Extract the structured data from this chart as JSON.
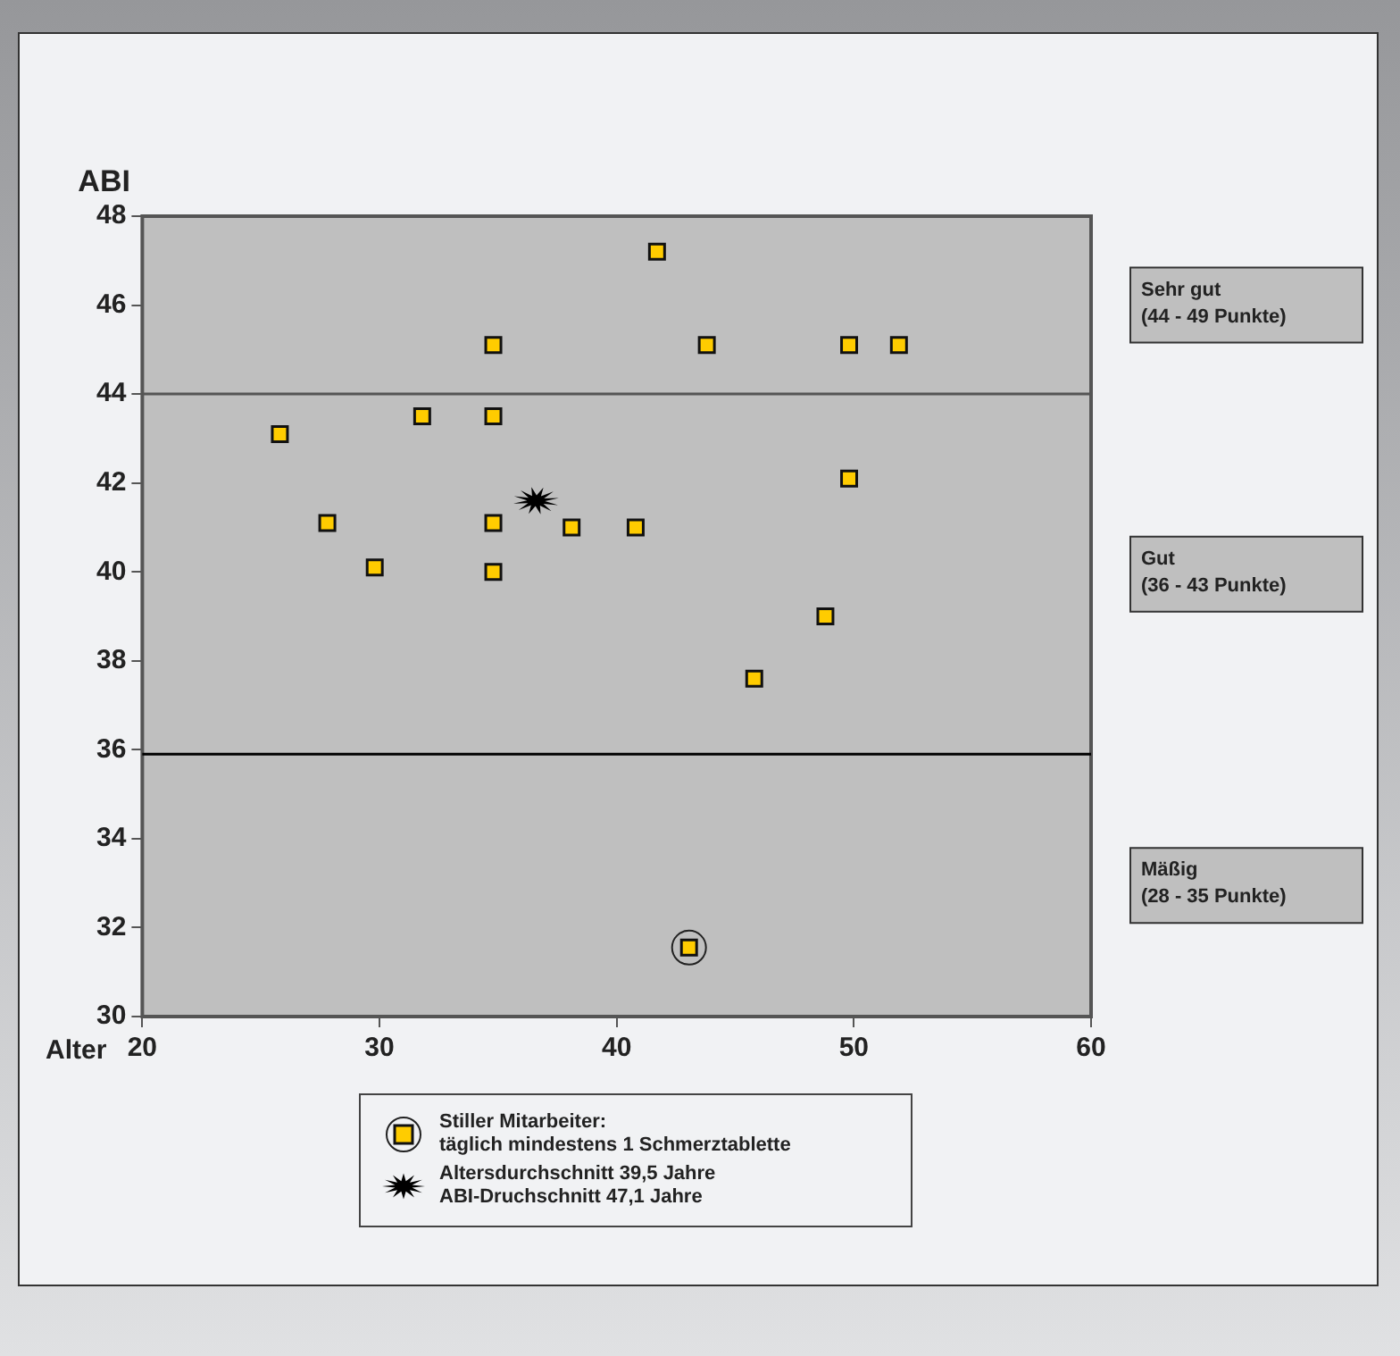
{
  "chart_data": {
    "type": "scatter",
    "xlabel": "Alter",
    "ylabel": "ABI",
    "xlim": [
      20,
      60
    ],
    "xticks": [
      20,
      30,
      40,
      50,
      60
    ],
    "ylim": [
      30,
      48
    ],
    "yticks": [
      30,
      32,
      34,
      36,
      38,
      40,
      42,
      44,
      46,
      48
    ],
    "grid": false,
    "series": [
      {
        "color": "#ffcc00",
        "marker": "square",
        "x": [
          25.8,
          27.8,
          29.8,
          31.8,
          34.8,
          34.8,
          34.8,
          34.8,
          38.1,
          40.8,
          41.7,
          43.8,
          45.8,
          48.8,
          49.8,
          49.8,
          51.9
        ],
        "values": [
          43.1,
          41.1,
          40.1,
          43.5,
          45.1,
          43.5,
          41.1,
          40.0,
          41.0,
          41.0,
          47.2,
          45.1,
          37.6,
          39.0,
          42.1,
          45.1,
          45.1
        ]
      },
      {
        "name": "Stiller Mitarbeiter:\ntäglich mindestens 1 Schmerztablette",
        "color": "#ffcc00",
        "marker": "square",
        "x": [
          43.05
        ],
        "values": [
          31.55
        ]
      },
      {
        "name": "Altersdurchschnitt 39,5 Jahre\nABI-Druchschnitt 47,1 Jahre",
        "color": "#000000",
        "marker": "star",
        "x": [
          36.6
        ],
        "values": [
          41.6
        ]
      }
    ],
    "ref_lines": [
      {
        "axis": "y",
        "value": 44,
        "color": "#555555"
      },
      {
        "axis": "y",
        "value": 35.9,
        "color": "#000000"
      }
    ],
    "bands": [
      {
        "axis": "y",
        "from": 44,
        "to": 48,
        "label": "Sehr gut\n(44 - 49 Punkte)",
        "color": "#bfbfbf"
      },
      {
        "axis": "y",
        "from": 35.9,
        "to": 44,
        "label": "Gut\n(36 - 43 Punkte)",
        "color": "#bfbfbf"
      },
      {
        "axis": "y",
        "from": 30,
        "to": 35.9,
        "label": "Mäßig\n(28 - 35 Punkte)",
        "color": "#bfbfbf"
      }
    ],
    "legend": "bottom"
  }
}
